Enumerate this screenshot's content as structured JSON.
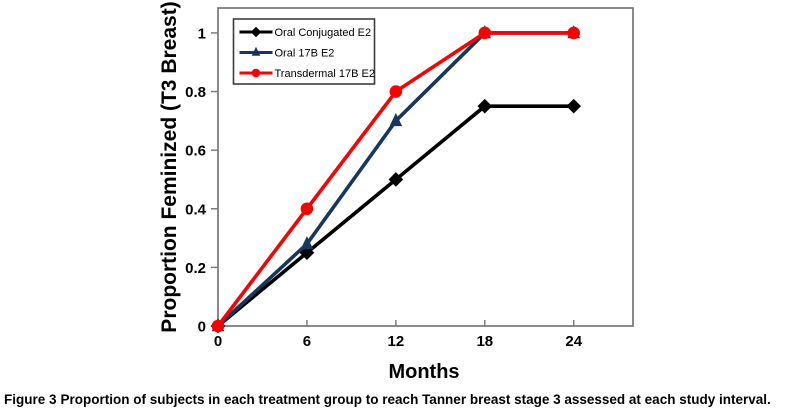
{
  "figure": {
    "caption_label": "Figure 3",
    "caption_text": "Proportion of subjects in each treatment group to reach Tanner breast stage 3 assessed at each study interval."
  },
  "chart_data": {
    "type": "line",
    "title": "",
    "xlabel": "Months",
    "ylabel": "Proportion Feminized (T3 Breast)",
    "x": [
      0,
      6,
      12,
      18,
      24
    ],
    "series": [
      {
        "name": "Oral Conjugated E2",
        "color": "#000000",
        "marker": "diamond",
        "values": [
          0,
          0.25,
          0.5,
          0.75,
          0.75
        ]
      },
      {
        "name": "Oral 17B E2",
        "color": "#17375E",
        "marker": "triangle",
        "values": [
          0,
          0.28,
          0.7,
          1.0,
          1.0
        ]
      },
      {
        "name": "Transdermal 17B E2",
        "color": "#F40505",
        "marker": "circle",
        "values": [
          0,
          0.4,
          0.8,
          1.0,
          1.0
        ]
      }
    ],
    "x_ticks": [
      0,
      6,
      12,
      18,
      24
    ],
    "y_ticks": [
      0,
      0.2,
      0.4,
      0.6,
      0.8,
      1
    ],
    "xlim": [
      0,
      28
    ],
    "ylim": [
      0,
      1.085
    ],
    "grid": false,
    "legend_position": "top-left-inside",
    "axis_color": "#767676"
  }
}
